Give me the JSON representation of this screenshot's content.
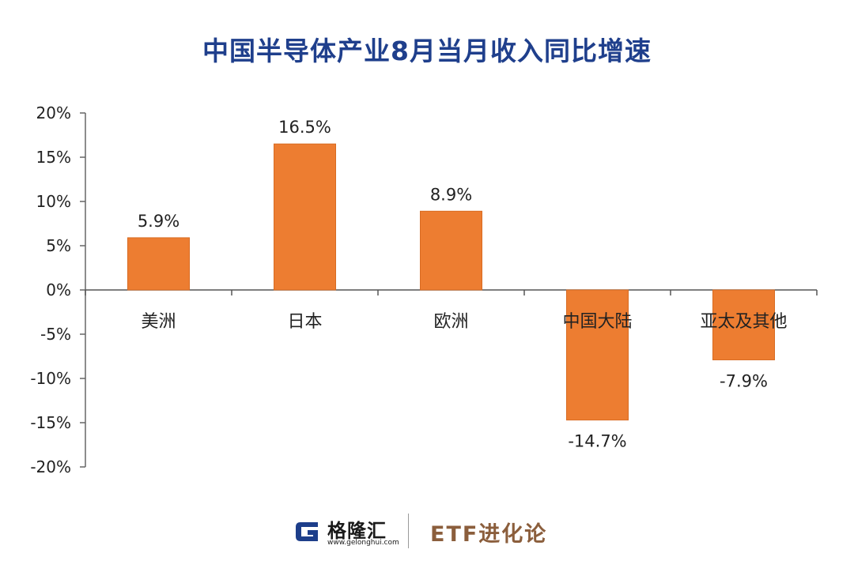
{
  "chart_data": {
    "type": "bar",
    "title": "中国半导体产业8月当月收入同比增速",
    "categories": [
      "美洲",
      "日本",
      "欧洲",
      "中国大陆",
      "亚太及其他"
    ],
    "values": [
      5.9,
      16.5,
      8.9,
      -14.7,
      -7.9
    ],
    "value_labels": [
      "5.9%",
      "16.5%",
      "8.9%",
      "-14.7%",
      "-7.9%"
    ],
    "ylim": [
      -20,
      20
    ],
    "yticks": [
      20,
      15,
      10,
      5,
      0,
      -5,
      -10,
      -15,
      -20
    ],
    "ytick_labels": [
      "20%",
      "15%",
      "10%",
      "5%",
      "0%",
      "-5%",
      "-10%",
      "-15%",
      "-20%"
    ],
    "xlabel": "",
    "ylabel": "",
    "grid": false,
    "legend": "none",
    "bar_color": "#ed7d31"
  },
  "footer": {
    "logo_mark": "G",
    "logo_name": "格隆汇",
    "logo_url": "www.gelonghui.com",
    "brand": "ETF进化论"
  },
  "colors": {
    "title": "#1f3f8c",
    "brand": "#8b5e3c"
  }
}
